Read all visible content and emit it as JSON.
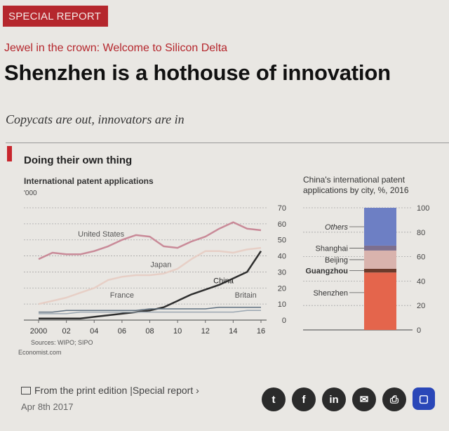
{
  "article": {
    "tag": "SPECIAL REPORT",
    "kicker": "Jewel in the crown: Welcome to Silicon Delta",
    "headline": "Shenzhen is a hothouse of innovation",
    "standfirst": "Copycats are out, innovators are in"
  },
  "chart_data": [
    {
      "type": "line",
      "title": "Doing their own thing",
      "subtitle": "International patent applications",
      "ylabel": "'000",
      "x": [
        2000,
        2001,
        2002,
        2003,
        2004,
        2005,
        2006,
        2007,
        2008,
        2009,
        2010,
        2011,
        2012,
        2013,
        2014,
        2015,
        2016
      ],
      "x_tick_labels": [
        "2000",
        "02",
        "04",
        "06",
        "08",
        "10",
        "12",
        "14",
        "16"
      ],
      "x_tick_values": [
        2000,
        2002,
        2004,
        2006,
        2008,
        2010,
        2012,
        2014,
        2016
      ],
      "ylim": [
        0,
        70
      ],
      "yticks": [
        0,
        10,
        20,
        30,
        40,
        50,
        60,
        70
      ],
      "series": [
        {
          "name": "United States",
          "color": "#c98a98",
          "width": 2.5,
          "values": [
            38,
            42,
            41,
            41,
            43,
            46,
            50,
            53,
            52,
            46,
            45,
            49,
            52,
            57,
            61,
            57,
            56
          ]
        },
        {
          "name": "Japan",
          "color": "#e7cfc6",
          "width": 2.5,
          "values": [
            10,
            12,
            14,
            17,
            20,
            25,
            27,
            28,
            28,
            29,
            32,
            38,
            43,
            43,
            42,
            44,
            45
          ]
        },
        {
          "name": "China",
          "color": "#2e2e2e",
          "width": 2.5,
          "values": [
            1,
            1,
            1,
            1,
            2,
            3,
            4,
            5,
            6,
            8,
            12,
            16,
            19,
            22,
            26,
            30,
            43
          ]
        },
        {
          "name": "France",
          "color": "#5f7080",
          "width": 1.5,
          "values": [
            5,
            5,
            6,
            6,
            6,
            6,
            6,
            6,
            7,
            7,
            7,
            7,
            7,
            8,
            8,
            8,
            8
          ]
        },
        {
          "name": "Britain",
          "color": "#9aa6b0",
          "width": 1.5,
          "values": [
            4,
            4,
            4,
            5,
            5,
            5,
            5,
            5,
            5,
            5,
            5,
            5,
            5,
            5,
            5,
            6,
            6
          ]
        }
      ],
      "labels": [
        {
          "text": "United States",
          "x": 2004.5,
          "y": 52
        },
        {
          "text": "Japan",
          "x": 2008.8,
          "y": 33
        },
        {
          "text": "China",
          "x": 2013.3,
          "y": 23
        },
        {
          "text": "France",
          "x": 2006.0,
          "y": 14
        },
        {
          "text": "Britain",
          "x": 2014.9,
          "y": 14
        }
      ]
    },
    {
      "type": "bar",
      "stacked": true,
      "subtitle_line1": "China's international patent",
      "subtitle_line2": "applications by city, %, 2016",
      "ylim": [
        0,
        100
      ],
      "yticks": [
        0,
        20,
        40,
        60,
        80,
        100
      ],
      "segments": [
        {
          "name": "Shenzhen",
          "value": 47,
          "color": "#e4654c"
        },
        {
          "name": "Guangzhou",
          "value": 3,
          "color": "#6b3b2c"
        },
        {
          "name": "Beijing",
          "value": 15,
          "color": "#d9b3ad"
        },
        {
          "name": "Shanghai",
          "value": 4,
          "color": "#7d6f8e"
        },
        {
          "name": "Others",
          "value": 31,
          "color": "#6d7fc4"
        }
      ]
    }
  ],
  "source": {
    "sources": "Sources: WIPO; SIPO",
    "brand": "Economist.com"
  },
  "footer": {
    "print_link": "From the print edition",
    "separator": "|",
    "section_link": "Special report",
    "chevron": "›",
    "date": "Apr 8th 2017"
  },
  "share": {
    "twitter": "t",
    "facebook": "f",
    "linkedin": "in",
    "email": "✉",
    "print": "⎙",
    "comment": "▢"
  }
}
